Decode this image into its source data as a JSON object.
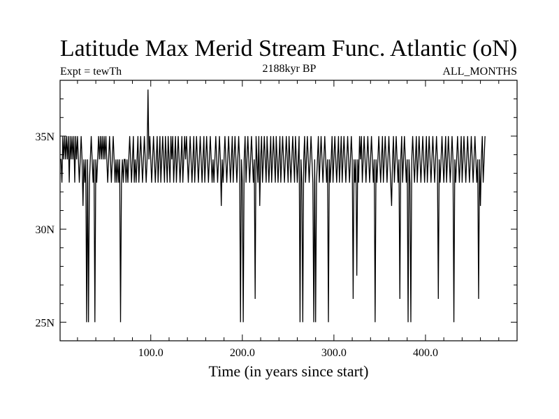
{
  "chart_data": {
    "type": "line",
    "title": "Latitude Max Merid Stream Func. Atlantic (oN)",
    "subtitle_left": "Expt = tewTh",
    "subtitle_center": "2188kyr BP",
    "subtitle_right": "ALL_MONTHS",
    "xlabel": "Time (in years since start)",
    "ylabel": "",
    "xlim": [
      1,
      500
    ],
    "ylim": [
      24,
      38
    ],
    "x_ticks": [
      100,
      200,
      300,
      400
    ],
    "x_tick_labels": [
      "100.0",
      "200.0",
      "300.0",
      "400.0"
    ],
    "y_ticks": [
      25,
      30,
      35
    ],
    "y_tick_labels": [
      "25N",
      "30N",
      "35N"
    ],
    "grid": false,
    "colors": {
      "line": "#000000",
      "axes": "#000000",
      "background": "#ffffff"
    },
    "series": [
      {
        "x_start": 1,
        "x_step": 1,
        "values": [
          33.75,
          33.75,
          32.5,
          35,
          33.75,
          35,
          33.75,
          35,
          33.75,
          35,
          32.5,
          35,
          33.75,
          35,
          33.75,
          35,
          32.5,
          35,
          33.75,
          35,
          33.75,
          32.5,
          33.75,
          35,
          33.75,
          31.25,
          33.75,
          32.5,
          33.75,
          25,
          33.75,
          25,
          32.5,
          33.75,
          35,
          33.75,
          32.5,
          33.75,
          25,
          33.75,
          32.5,
          33.75,
          35,
          33.75,
          35,
          33.75,
          35,
          33.75,
          35,
          33.75,
          35,
          33.75,
          32.5,
          33.75,
          35,
          33.75,
          32.5,
          33.75,
          35,
          33.75,
          32.5,
          33.75,
          32.5,
          33.75,
          32.5,
          33.75,
          25,
          32.5,
          33.75,
          32.5,
          33.75,
          33.75,
          32.5,
          33.75,
          32.5,
          33.75,
          35,
          33.75,
          32.5,
          33.75,
          35,
          32.5,
          33.75,
          32.5,
          33.75,
          35,
          32.5,
          33.75,
          35,
          33.75,
          32.5,
          33.75,
          35,
          33.75,
          32.5,
          33.75,
          37.5,
          33.75,
          35,
          33.75,
          32.5,
          33.75,
          35,
          33.75,
          32.5,
          33.75,
          35,
          32.5,
          33.75,
          35,
          32.5,
          33.75,
          35,
          33.75,
          32.5,
          35,
          33.75,
          32.5,
          35,
          33.75,
          32.5,
          35,
          33.75,
          35,
          32.5,
          33.75,
          35,
          32.5,
          33.75,
          35,
          33.75,
          32.5,
          33.75,
          35,
          32.5,
          33.75,
          35,
          33.75,
          35,
          33.75,
          32.5,
          33.75,
          35,
          33.75,
          32.5,
          33.75,
          35,
          32.5,
          33.75,
          35,
          33.75,
          32.5,
          33.75,
          35,
          33.75,
          32.5,
          33.75,
          35,
          32.5,
          33.75,
          35,
          33.75,
          32.5,
          33.75,
          35,
          33.75,
          32.5,
          33.75,
          32.5,
          33.75,
          35,
          33.75,
          32.5,
          33.75,
          35,
          33.75,
          31.25,
          33.75,
          32.5,
          33.75,
          35,
          33.75,
          32.5,
          33.75,
          35,
          33.75,
          32.5,
          33.75,
          35,
          32.5,
          33.75,
          35,
          33.75,
          32.5,
          33.75,
          35,
          33.75,
          25,
          33.75,
          32.5,
          25,
          33.75,
          35,
          32.5,
          33.75,
          35,
          33.75,
          32.5,
          33.75,
          35,
          33.75,
          32.5,
          33.75,
          26.25,
          35,
          33.75,
          32.5,
          35,
          31.25,
          33.75,
          35,
          32.5,
          33.75,
          35,
          33.75,
          32.5,
          35,
          33.75,
          32.5,
          33.75,
          35,
          32.5,
          33.75,
          35,
          33.75,
          32.5,
          35,
          33.75,
          32.5,
          33.75,
          35,
          32.5,
          33.75,
          35,
          33.75,
          32.5,
          33.75,
          35,
          33.75,
          32.5,
          35,
          33.75,
          32.5,
          33.75,
          35,
          33.75,
          32.5,
          35,
          33.75,
          32.5,
          33.75,
          35,
          25,
          33.75,
          32.5,
          25,
          33.75,
          35,
          32.5,
          33.75,
          35,
          33.75,
          32.5,
          33.75,
          35,
          33.75,
          32.5,
          25,
          33.75,
          25,
          32.5,
          33.75,
          35,
          32.5,
          33.75,
          35,
          33.75,
          32.5,
          33.75,
          35,
          33.75,
          32.5,
          33.75,
          25,
          33.75,
          32.5,
          33.75,
          35,
          32.5,
          33.75,
          35,
          33.75,
          32.5,
          33.75,
          35,
          32.5,
          33.75,
          35,
          32.5,
          33.75,
          35,
          33.75,
          32.5,
          33.75,
          35,
          33.75,
          32.5,
          33.75,
          35,
          33.75,
          26.25,
          33.75,
          32.5,
          33.75,
          27.5,
          33.75,
          32.5,
          35,
          33.75,
          35,
          32.5,
          33.75,
          35,
          33.75,
          32.5,
          33.75,
          35,
          33.75,
          32.5,
          33.75,
          35,
          33.75,
          32.5,
          33.75,
          25,
          33.75,
          32.5,
          33.75,
          35,
          33.75,
          32.5,
          33.75,
          35,
          32.5,
          33.75,
          35,
          33.75,
          32.5,
          33.75,
          35,
          33.75,
          32.5,
          31.25,
          33.75,
          35,
          32.5,
          33.75,
          35,
          33.75,
          32.5,
          33.75,
          26.25,
          33.75,
          35,
          32.5,
          33.75,
          35,
          33.75,
          32.5,
          33.75,
          25,
          33.75,
          32.5,
          25,
          33.75,
          35,
          33.75,
          32.5,
          33.75,
          35,
          32.5,
          33.75,
          35,
          33.75,
          32.5,
          33.75,
          35,
          33.75,
          32.5,
          33.75,
          35,
          32.5,
          33.75,
          35,
          33.75,
          32.5,
          33.75,
          35,
          33.75,
          32.5,
          33.75,
          35,
          33.75,
          26.25,
          33.75,
          32.5,
          33.75,
          35,
          33.75,
          32.5,
          33.75,
          35,
          32.5,
          33.75,
          35,
          33.75,
          32.5,
          33.75,
          35,
          33.75,
          25,
          33.75,
          32.5,
          33.75,
          35,
          33.75,
          32.5,
          33.75,
          35,
          32.5,
          33.75,
          35,
          33.75,
          32.5,
          33.75,
          35,
          33.75,
          32.5,
          33.75,
          35,
          33.75,
          32.5,
          33.75,
          35,
          33.75,
          32.5,
          33.75,
          26.25,
          33.75,
          31.25,
          33.75,
          35,
          32.5,
          33.75,
          35
        ]
      }
    ]
  }
}
